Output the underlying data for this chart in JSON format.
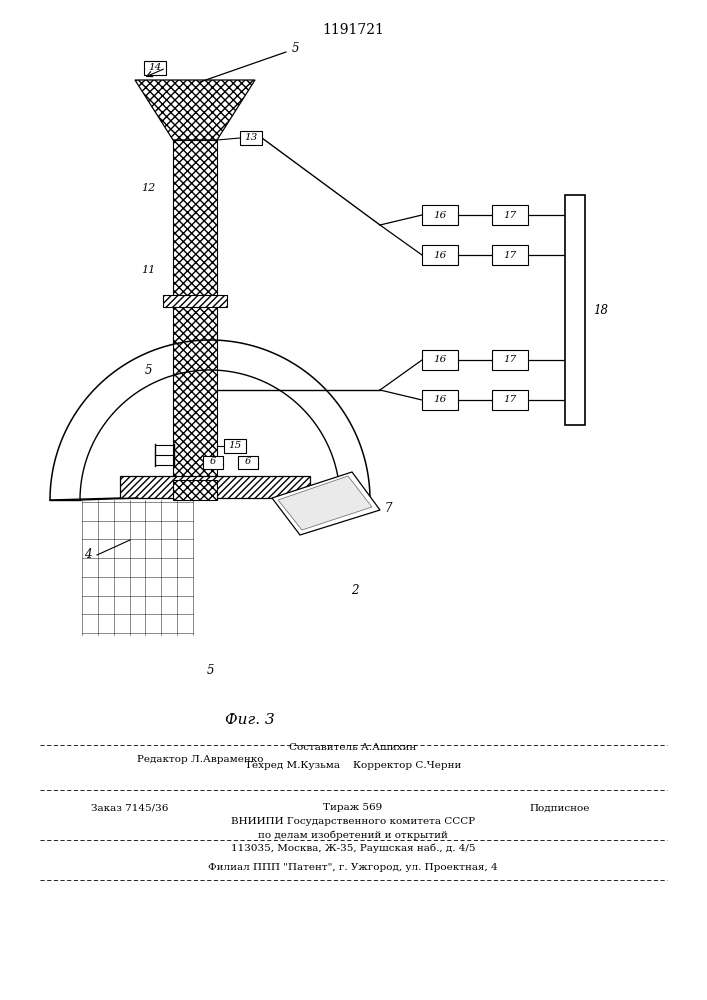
{
  "title": "1191721",
  "fig_label": "Фиг. 3",
  "bg_color": "#ffffff",
  "line_color": "#000000",
  "footer": {
    "line1_left": "Редактор Л.Авраменко",
    "line1_center": "Составитель А.Ашихин",
    "line1_right_label": "Техред М.Кузьма",
    "line1_corr": "Корректор С.Черни",
    "line2_order": "Заказ 7145/36",
    "line2_tirazh": "Тираж 569",
    "line2_podp": "Подписное",
    "line3": "ВНИИПИ Государственного комитета СССР",
    "line4": "по делам изобретений и открытий",
    "line5": "113035, Москва, Ж-35, Раушская наб., д. 4/5",
    "line6": "Филиал ППП \"Патент\", г. Ужгород, ул. Проектная, 4"
  }
}
